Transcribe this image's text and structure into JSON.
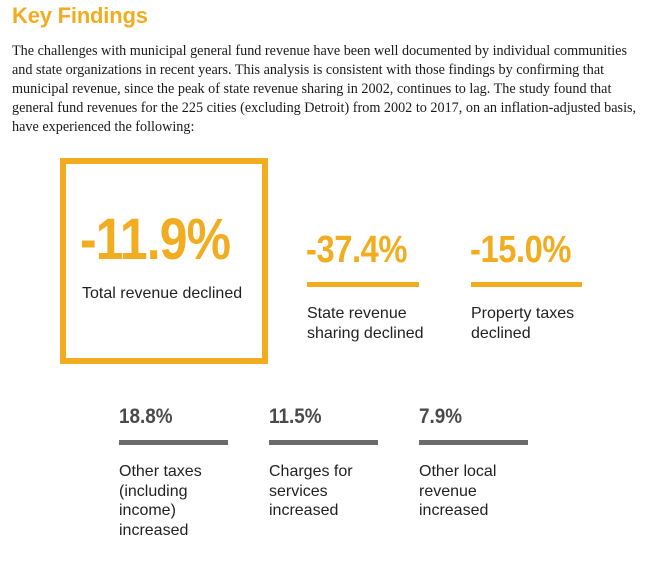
{
  "heading": "Key Findings",
  "intro": "The challenges with municipal general fund revenue have been well documented by individual communities and state organizations in recent years. This analysis is consistent with those findings by confirming that municipal revenue, since the peak of state revenue sharing in 2002, continues to lag. The study found that general fund revenues for the 225 cities (excluding Detroit) from 2002 to 2017, on an inflation-adjusted basis, have experienced the following:",
  "highlight": {
    "value": "-11.9%",
    "label": "Total revenue declined"
  },
  "declines": [
    {
      "value": "-37.4%",
      "label_lines": [
        "State revenue",
        "sharing declined"
      ]
    },
    {
      "value": "-15.0%",
      "label_lines": [
        "Property taxes",
        "declined"
      ]
    }
  ],
  "increases": [
    {
      "value": "18.8%",
      "label_lines": [
        "Other taxes",
        "(including",
        "income)",
        "increased"
      ]
    },
    {
      "value": "11.5%",
      "label_lines": [
        "Charges for",
        "services",
        "increased"
      ]
    },
    {
      "value": "7.9%",
      "label_lines": [
        "Other local",
        "revenue",
        "increased"
      ]
    }
  ],
  "colors": {
    "accent": "#f2ac1f",
    "secondary_value": "#4a4a4a",
    "secondary_rule": "#6b6b6b"
  }
}
